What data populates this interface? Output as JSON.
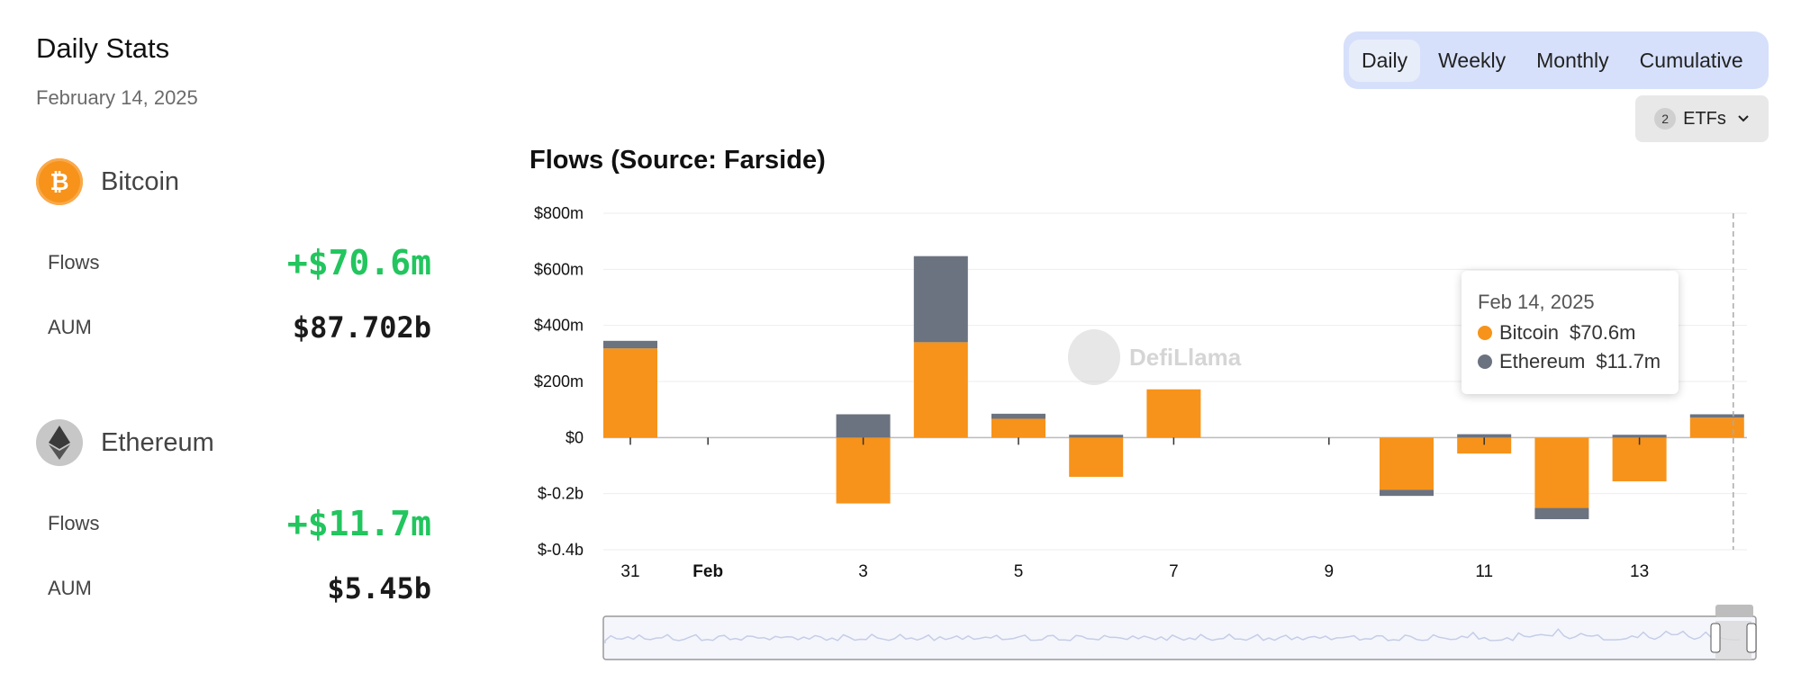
{
  "header": {
    "title": "Daily Stats",
    "date": "February 14, 2025"
  },
  "assets": [
    {
      "name": "Bitcoin",
      "icon": "bitcoin-icon",
      "symbol": "₿",
      "flows_label": "Flows",
      "flows": "+$70.6m",
      "aum_label": "AUM",
      "aum": "$87.702b"
    },
    {
      "name": "Ethereum",
      "icon": "ethereum-icon",
      "symbol": "◆",
      "flows_label": "Flows",
      "flows": "+$11.7m",
      "aum_label": "AUM",
      "aum": "$5.45b"
    }
  ],
  "tabs": [
    "Daily",
    "Weekly",
    "Monthly",
    "Cumulative"
  ],
  "active_tab": "Daily",
  "etf_filter": {
    "count": "2",
    "label": "ETFs"
  },
  "watermark": "DefiLlama",
  "tooltip": {
    "date": "Feb 14, 2025",
    "rows": [
      {
        "name": "Bitcoin",
        "value": "$70.6m"
      },
      {
        "name": "Ethereum",
        "value": "$11.7m"
      }
    ]
  },
  "colors": {
    "bitcoin": "#f7931a",
    "ethereum": "#6b7280",
    "positive": "#22c55e"
  },
  "chart_data": {
    "type": "bar",
    "stacked": true,
    "title": "Flows (Source: Farside)",
    "x_labels": [
      "31",
      "Feb",
      "3",
      "5",
      "7",
      "9",
      "11",
      "13"
    ],
    "x_label_positions": [
      0,
      1,
      3,
      5,
      7,
      9,
      11,
      13
    ],
    "categories": [
      "Jan 31",
      "Feb 1",
      "Feb 2",
      "Feb 3",
      "Feb 4",
      "Feb 5",
      "Feb 6",
      "Feb 7",
      "Feb 8",
      "Feb 9",
      "Feb 10",
      "Feb 11",
      "Feb 12",
      "Feb 13",
      "Feb 14"
    ],
    "series": [
      {
        "name": "Bitcoin",
        "values": [
          318,
          0,
          0,
          -235,
          340,
          67,
          -140,
          172,
          0,
          0,
          -186,
          -57,
          -251,
          -156,
          71
        ]
      },
      {
        "name": "Ethereum",
        "values": [
          27,
          0,
          0,
          83,
          307,
          18,
          10,
          0,
          0,
          0,
          -22,
          12,
          -40,
          10,
          12
        ]
      }
    ],
    "y_ticks": [
      800,
      600,
      400,
      200,
      0,
      -200,
      -400
    ],
    "y_tick_labels": [
      "$800m",
      "$600m",
      "$400m",
      "$200m",
      "$0",
      "$-0.2b",
      "$-0.4b"
    ],
    "ylim": [
      -400,
      800
    ],
    "grid": true,
    "units": "USD millions"
  }
}
